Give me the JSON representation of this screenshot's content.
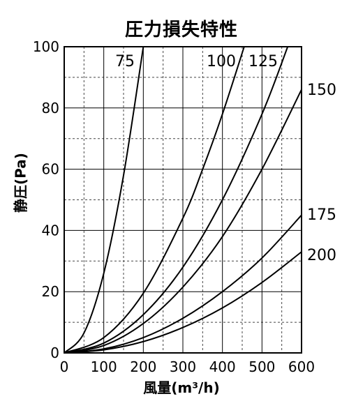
{
  "chart_data": {
    "type": "line",
    "title": "圧力損失特性",
    "xlabel": "風量(m³/h)",
    "ylabel": "静圧(Pa)",
    "xlim": [
      0,
      600
    ],
    "ylim": [
      0,
      100
    ],
    "xticks": [
      0,
      100,
      200,
      300,
      400,
      500,
      600
    ],
    "yticks": [
      0,
      20,
      40,
      60,
      80,
      100
    ],
    "grid": "on (solid major, dashed minor)",
    "series": [
      {
        "name": "75",
        "x": [
          0,
          50,
          100,
          150,
          200
        ],
        "y": [
          0,
          6.5,
          26,
          58,
          100
        ]
      },
      {
        "name": "100",
        "x": [
          0,
          100,
          200,
          300,
          350,
          400,
          455
        ],
        "y": [
          0,
          5,
          19.5,
          44,
          60,
          78,
          100
        ]
      },
      {
        "name": "125",
        "x": [
          0,
          100,
          200,
          300,
          400,
          500,
          565
        ],
        "y": [
          0,
          3.2,
          12.5,
          28,
          50,
          78,
          100
        ]
      },
      {
        "name": "150",
        "x": [
          0,
          100,
          200,
          300,
          400,
          500,
          600
        ],
        "y": [
          0,
          2.4,
          9.6,
          21.5,
          38,
          60,
          86
        ]
      },
      {
        "name": "175",
        "x": [
          0,
          100,
          200,
          300,
          400,
          500,
          600
        ],
        "y": [
          0,
          1.3,
          5,
          11.3,
          20,
          31,
          45
        ]
      },
      {
        "name": "200",
        "x": [
          0,
          100,
          200,
          300,
          400,
          500,
          600
        ],
        "y": [
          0,
          1,
          3.7,
          8.3,
          14.7,
          23,
          33
        ]
      }
    ]
  }
}
